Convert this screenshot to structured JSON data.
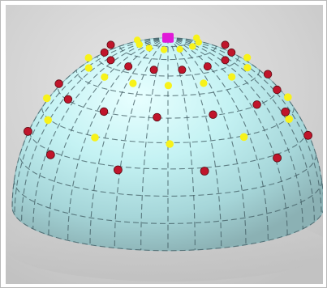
{
  "image": {
    "subject": "dome-wireframe",
    "colors": {
      "background": "#d4d4d4",
      "dome_light": "#dffdfd",
      "dome_mid": "#b8ecef",
      "dome_dark": "#8fb9bd",
      "grid_line": "#3f5a60",
      "red_marker": "#c0152b",
      "yellow_marker": "#f7f21a",
      "apex_marker": "#e01ad8"
    }
  }
}
